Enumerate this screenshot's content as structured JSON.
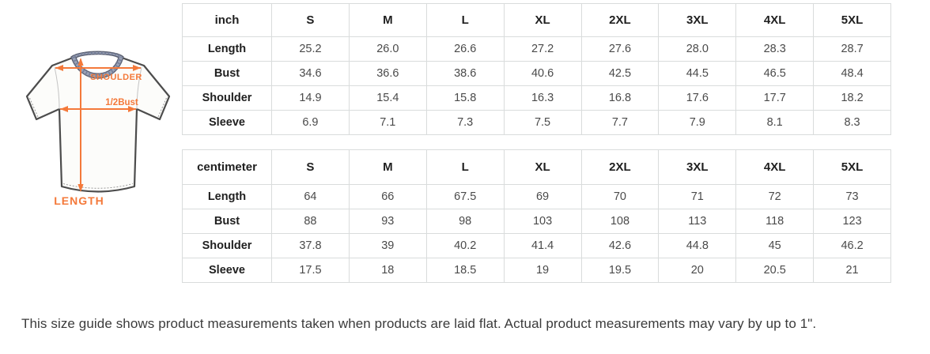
{
  "diagram": {
    "shoulder_label": "SHOULDER",
    "bust_label": "1/2Bust",
    "length_label": "LENGTH",
    "accent_color": "#f4793a"
  },
  "tables": [
    {
      "unit": "inch",
      "sizes": [
        "S",
        "M",
        "L",
        "XL",
        "2XL",
        "3XL",
        "4XL",
        "5XL"
      ],
      "rows": [
        {
          "label": "Length",
          "values": [
            "25.2",
            "26.0",
            "26.6",
            "27.2",
            "27.6",
            "28.0",
            "28.3",
            "28.7"
          ]
        },
        {
          "label": "Bust",
          "values": [
            "34.6",
            "36.6",
            "38.6",
            "40.6",
            "42.5",
            "44.5",
            "46.5",
            "48.4"
          ]
        },
        {
          "label": "Shoulder",
          "values": [
            "14.9",
            "15.4",
            "15.8",
            "16.3",
            "16.8",
            "17.6",
            "17.7",
            "18.2"
          ]
        },
        {
          "label": "Sleeve",
          "values": [
            "6.9",
            "7.1",
            "7.3",
            "7.5",
            "7.7",
            "7.9",
            "8.1",
            "8.3"
          ]
        }
      ]
    },
    {
      "unit": "centimeter",
      "sizes": [
        "S",
        "M",
        "L",
        "XL",
        "2XL",
        "3XL",
        "4XL",
        "5XL"
      ],
      "rows": [
        {
          "label": "Length",
          "values": [
            "64",
            "66",
            "67.5",
            "69",
            "70",
            "71",
            "72",
            "73"
          ]
        },
        {
          "label": "Bust",
          "values": [
            "88",
            "93",
            "98",
            "103",
            "108",
            "113",
            "118",
            "123"
          ]
        },
        {
          "label": "Shoulder",
          "values": [
            "37.8",
            "39",
            "40.2",
            "41.4",
            "42.6",
            "44.8",
            "45",
            "46.2"
          ]
        },
        {
          "label": "Sleeve",
          "values": [
            "17.5",
            "18",
            "18.5",
            "19",
            "19.5",
            "20",
            "20.5",
            "21"
          ]
        }
      ]
    }
  ],
  "footer": {
    "note": "This size guide shows product measurements taken when products are laid flat. Actual product measurements may vary by up to 1\"."
  }
}
